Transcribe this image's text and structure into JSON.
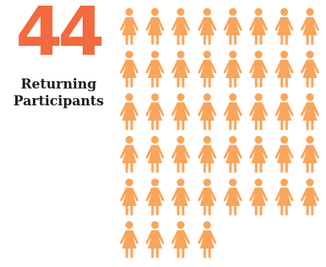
{
  "stat": {
    "count": 44,
    "number_text": "44",
    "label_line1": "Returning",
    "label_line2": "Participants"
  },
  "colors": {
    "number": "#f26a3d",
    "person": "#f9a55b",
    "label": "#1d1d1d"
  },
  "icon": "person-female-icon"
}
